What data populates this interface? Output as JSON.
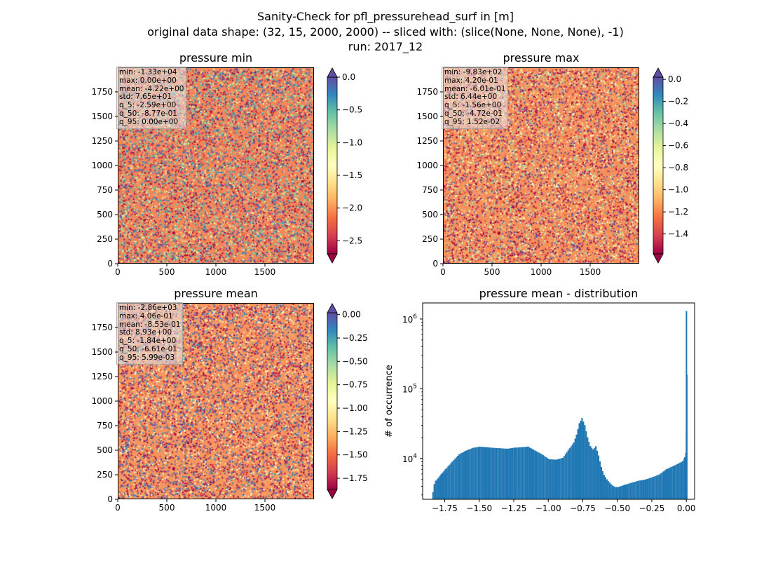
{
  "figure": {
    "title_lines": [
      "Sanity-Check for pfl_pressurehead_surf in [m]",
      "original data shape: (32, 15, 2000, 2000) -- sliced with: (slice(None, None, None), -1)",
      "run: 2017_12"
    ]
  },
  "colormap": "Spectral",
  "colors": {
    "hist_bar": "#1f77b4",
    "cmap_low": "#9e0142",
    "cmap_high": "#5e4fa2"
  },
  "chart_data": [
    {
      "type": "heatmap",
      "title": "pressure min",
      "xticks": [
        "0",
        "500",
        "1000",
        "1500"
      ],
      "yticks": [
        "0",
        "250",
        "500",
        "750",
        "1000",
        "1250",
        "1500",
        "1750"
      ],
      "xlim": [
        0,
        2000
      ],
      "ylim": [
        0,
        2000
      ],
      "colorbar": {
        "range": [
          -2.7,
          0.0
        ],
        "ticks": [
          "0.0",
          "−0.5",
          "−1.0",
          "−1.5",
          "−2.0",
          "−2.5"
        ],
        "extend": "both"
      },
      "stats": [
        "min: -1.33e+04",
        "max: 0.00e+00",
        "mean: -4.22e+00",
        "std: 7.65e+01",
        "q_5: -2.59e+00",
        "q_50: -8.77e-01",
        "q_95: 0.00e+00"
      ]
    },
    {
      "type": "heatmap",
      "title": "pressure max",
      "xticks": [
        "0",
        "500",
        "1000",
        "1500"
      ],
      "yticks": [
        "0",
        "250",
        "500",
        "750",
        "1000",
        "1250",
        "1500",
        "1750"
      ],
      "xlim": [
        0,
        2000
      ],
      "ylim": [
        0,
        2000
      ],
      "colorbar": {
        "range": [
          -1.58,
          0.02
        ],
        "ticks": [
          "0.0",
          "−0.2",
          "−0.4",
          "−0.6",
          "−0.8",
          "−1.0",
          "−1.2",
          "−1.4"
        ],
        "extend": "both"
      },
      "stats": [
        "min: -9.83e+02",
        "max: 4.20e-01",
        "mean: -6.01e-01",
        "std: 6.44e+00",
        "q_5: -1.56e+00",
        "q_50: -4.72e-01",
        "q_95: 1.52e-02"
      ]
    },
    {
      "type": "heatmap",
      "title": "pressure mean",
      "xticks": [
        "0",
        "500",
        "1000",
        "1500"
      ],
      "yticks": [
        "0",
        "250",
        "500",
        "750",
        "1000",
        "1250",
        "1500",
        "1750"
      ],
      "xlim": [
        0,
        2000
      ],
      "ylim": [
        0,
        2000
      ],
      "colorbar": {
        "range": [
          -1.87,
          0.02
        ],
        "ticks": [
          "0.00",
          "−0.25",
          "−0.50",
          "−0.75",
          "−1.00",
          "−1.25",
          "−1.50",
          "−1.75"
        ],
        "extend": "both"
      },
      "stats": [
        "min: -2.86e+03",
        "max: 4.06e-01",
        "mean: -8.53e-01",
        "std: 8.93e+00",
        "q_5: -1.84e+00",
        "q_50: -6.61e-01",
        "q_95: 5.99e-03"
      ]
    },
    {
      "type": "bar",
      "title": "pressure mean - distribution",
      "ylabel": "# of occurrence",
      "xlabel": "",
      "yscale": "log",
      "xlim": [
        -1.91,
        0.06
      ],
      "ylim": [
        2600,
        1700000
      ],
      "xticks": [
        "−1.75",
        "−1.50",
        "−1.25",
        "−1.00",
        "−0.75",
        "−0.50",
        "−0.25",
        "0.00"
      ],
      "ytick_labels": [
        {
          "base": "10",
          "exp": "4"
        },
        {
          "base": "10",
          "exp": "5"
        },
        {
          "base": "10",
          "exp": "6"
        }
      ],
      "histogram": {
        "x": [
          -1.84,
          -1.83,
          -1.82,
          -1.8,
          -1.78,
          -1.75,
          -1.7,
          -1.65,
          -1.6,
          -1.55,
          -1.5,
          -1.45,
          -1.4,
          -1.35,
          -1.3,
          -1.25,
          -1.2,
          -1.15,
          -1.1,
          -1.05,
          -1.0,
          -0.95,
          -0.9,
          -0.85,
          -0.82,
          -0.8,
          -0.78,
          -0.76,
          -0.74,
          -0.72,
          -0.7,
          -0.68,
          -0.66,
          -0.64,
          -0.62,
          -0.6,
          -0.58,
          -0.56,
          -0.54,
          -0.52,
          -0.5,
          -0.48,
          -0.45,
          -0.4,
          -0.35,
          -0.3,
          -0.25,
          -0.2,
          -0.15,
          -0.1,
          -0.06,
          -0.03,
          -0.015,
          -0.008,
          -0.004,
          -0.001,
          0.0
        ],
        "y": [
          3300,
          4300,
          4800,
          5300,
          6000,
          7000,
          9000,
          11500,
          13000,
          14200,
          14800,
          14500,
          14200,
          14000,
          13800,
          14300,
          14500,
          14800,
          13000,
          11500,
          9800,
          9600,
          10200,
          14000,
          17000,
          22000,
          32000,
          38000,
          30000,
          20000,
          15000,
          13500,
          15000,
          11000,
          7500,
          5800,
          5000,
          4500,
          4100,
          3900,
          3900,
          4000,
          4200,
          4500,
          4800,
          5000,
          5400,
          5900,
          7000,
          7800,
          8500,
          9200,
          10500,
          12000,
          26000,
          160000,
          1300000
        ]
      }
    }
  ]
}
